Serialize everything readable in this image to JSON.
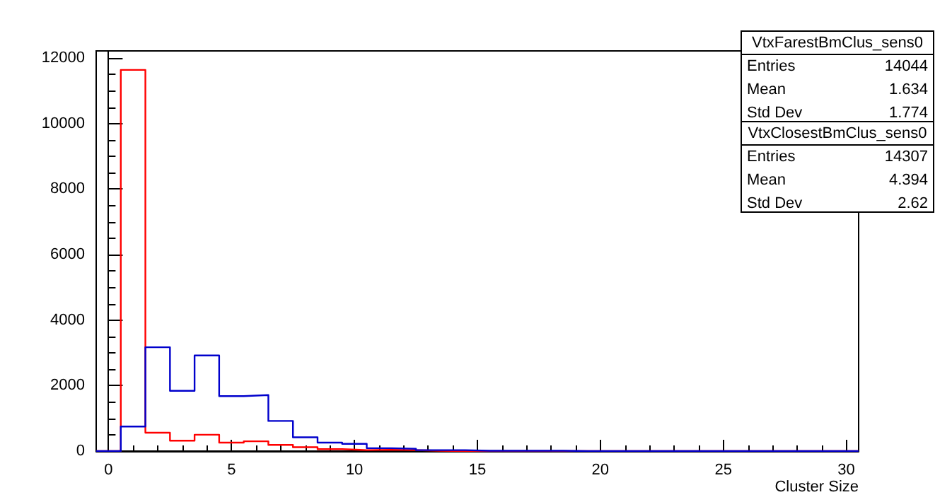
{
  "chart_data": {
    "type": "histogram",
    "xlabel": "Cluster Size",
    "bins": [
      -0.5,
      0.5,
      1.5,
      2.5,
      3.5,
      4.5,
      5.5,
      6.5,
      7.5,
      8.5,
      9.5,
      10.5,
      11.5,
      12.5,
      13.5,
      14.5,
      15.5,
      16.5,
      17.5,
      18.5,
      19.5,
      20.5,
      21.5,
      22.5,
      23.5,
      24.5,
      25.5,
      26.5,
      27.5,
      28.5,
      29.5,
      30.5
    ],
    "series": [
      {
        "color": "#ff0000",
        "values": [
          0,
          11640,
          560,
          320,
          500,
          260,
          300,
          190,
          120,
          60,
          30,
          40,
          30,
          10,
          0,
          0,
          0,
          0,
          0,
          0,
          0,
          0,
          0,
          0,
          0,
          0,
          0,
          0,
          0,
          0,
          0
        ]
      },
      {
        "color": "#0000cc",
        "values": [
          0,
          750,
          3170,
          1840,
          2920,
          1680,
          1710,
          920,
          420,
          260,
          220,
          90,
          70,
          30,
          30,
          10,
          10,
          10,
          10,
          0,
          0,
          0,
          0,
          0,
          0,
          0,
          0,
          0,
          0,
          0,
          0
        ]
      }
    ],
    "xlim": [
      -0.5,
      30.5
    ],
    "xticks": [
      0,
      5,
      10,
      15,
      20,
      25,
      30
    ],
    "ylim": [
      0,
      12220
    ],
    "yticks": [
      0,
      2000,
      4000,
      6000,
      8000,
      10000,
      12000
    ],
    "annotations": [
      "VtxFarestBmClus_sens0",
      "Entries",
      "14044",
      "Mean",
      "1.634",
      "Std Dev",
      "1.774",
      "VtxClosestBmClus_sens0",
      "Entries",
      "14307",
      "Mean",
      "4.394",
      "Std Dev",
      "2.62"
    ],
    "tick_labels": "xy"
  }
}
